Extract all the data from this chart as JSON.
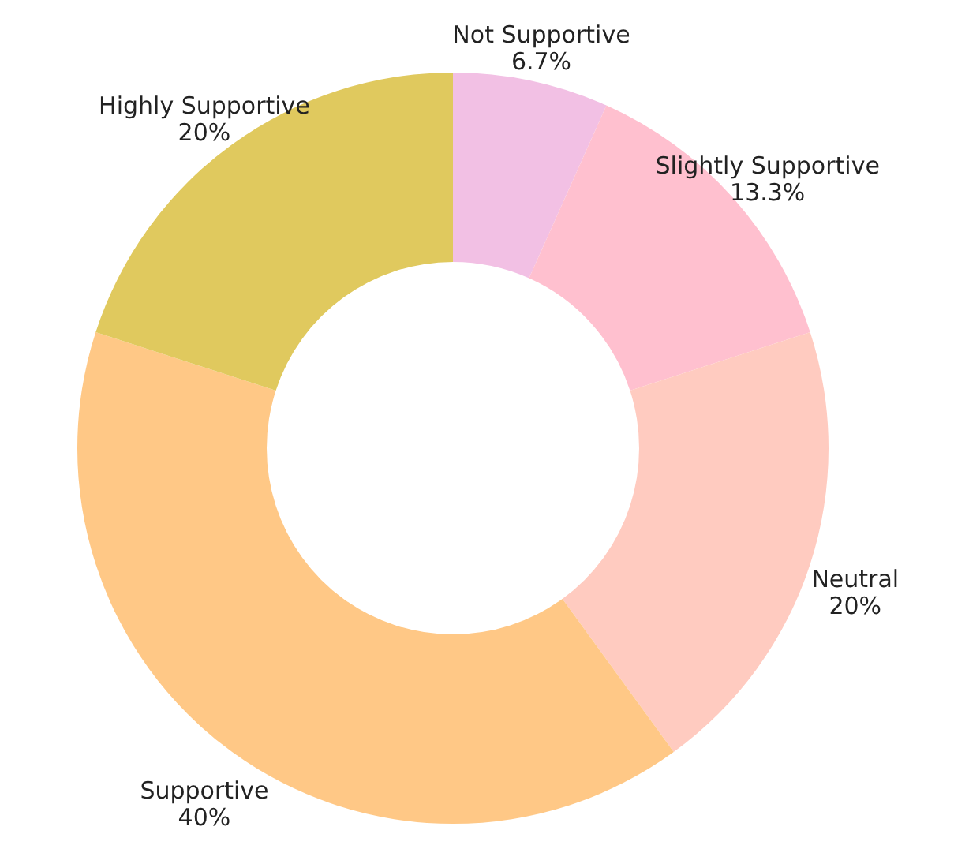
{
  "chart_data": {
    "type": "donut",
    "categories": [
      "Not Supportive",
      "Slightly Supportive",
      "Neutral",
      "Supportive",
      "Highly Supportive"
    ],
    "values": [
      6.7,
      13.3,
      20,
      40,
      20
    ],
    "value_labels": [
      "6.7%",
      "13.3%",
      "20%",
      "40%",
      "20%"
    ],
    "colors": [
      "#f2c0e4",
      "#ffc0cf",
      "#ffcbc0",
      "#ffc886",
      "#e0c95e"
    ]
  }
}
